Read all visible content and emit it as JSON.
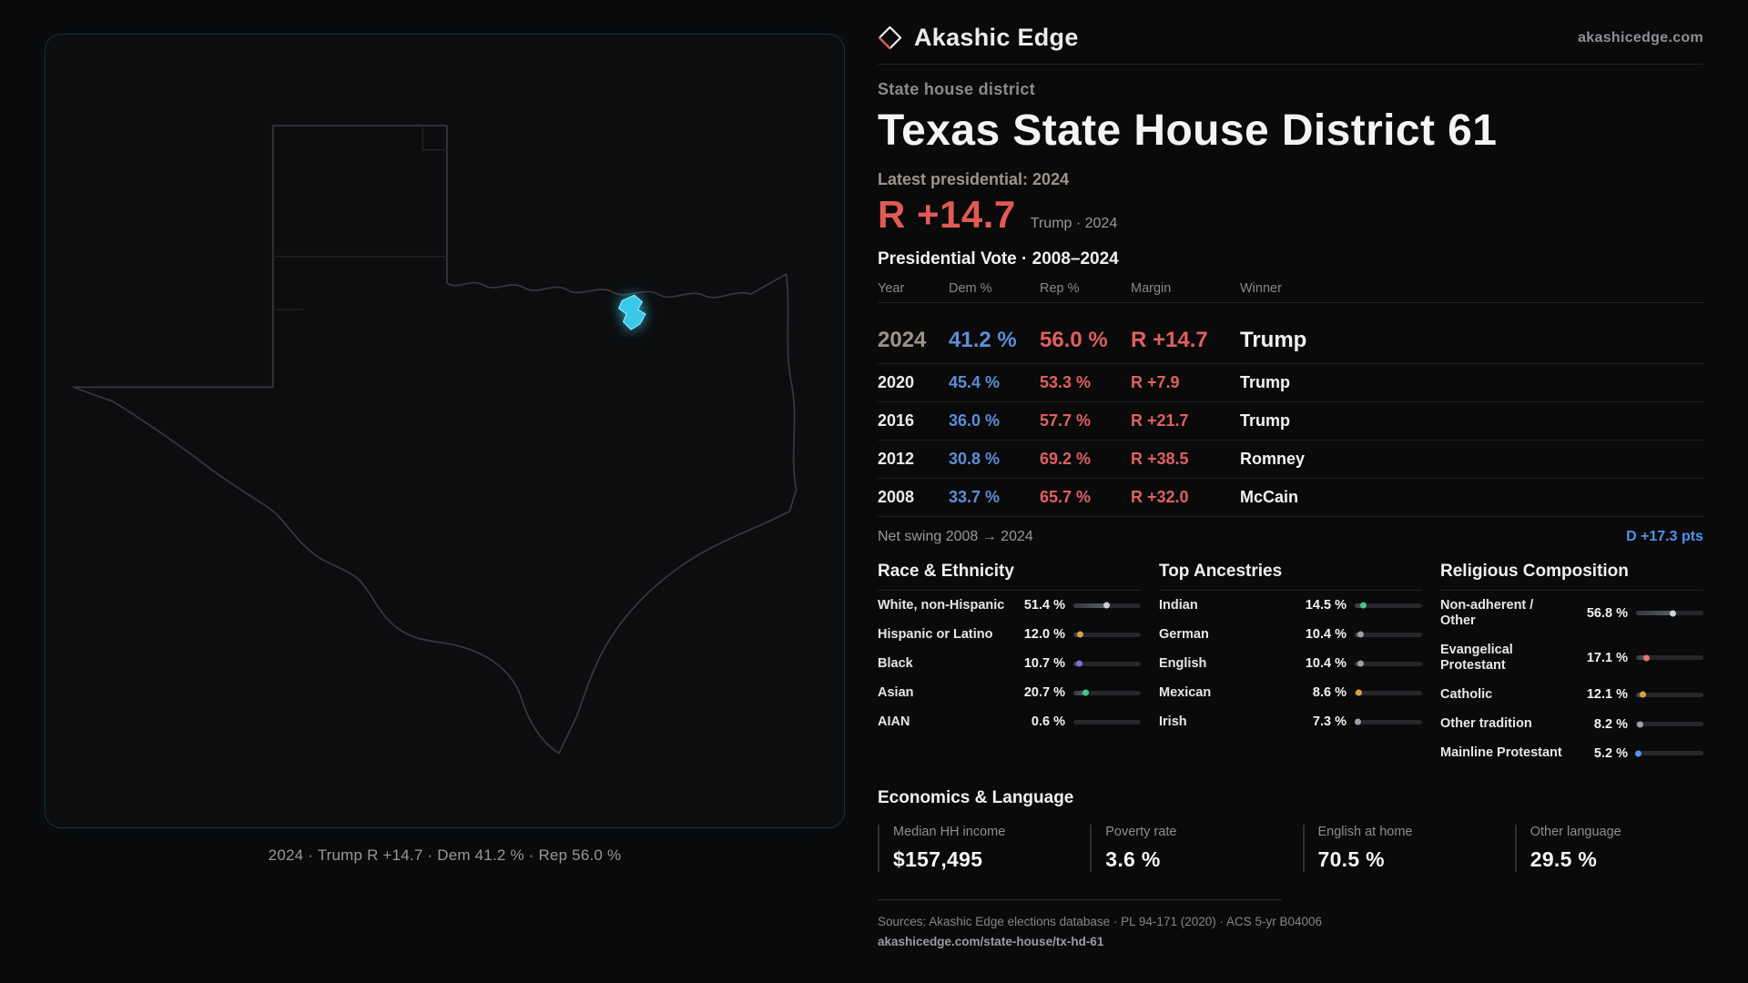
{
  "brand": {
    "name": "Akashic Edge",
    "website": "akashicedge.com"
  },
  "map_panel": {
    "caption": "2024 · Trump R +14.7 · Dem 41.2 % · Rep 56.0 %",
    "highlight_color": "#38c8ea"
  },
  "header": {
    "category": "State house district",
    "title": "Texas State House District 61",
    "latest_label": "Latest presidential: 2024",
    "margin_value": "R +14.7",
    "margin_detail": "Trump · 2024"
  },
  "vote_table": {
    "title": "Presidential Vote · 2008–2024",
    "columns": [
      "Year",
      "Dem %",
      "Rep %",
      "Margin",
      "Winner"
    ],
    "rows": [
      {
        "year": "2024",
        "dem": "41.2 %",
        "rep": "56.0 %",
        "margin": "R +14.7",
        "winner": "Trump"
      },
      {
        "year": "2020",
        "dem": "45.4 %",
        "rep": "53.3 %",
        "margin": "R +7.9",
        "winner": "Trump"
      },
      {
        "year": "2016",
        "dem": "36.0 %",
        "rep": "57.7 %",
        "margin": "R +21.7",
        "winner": "Trump"
      },
      {
        "year": "2012",
        "dem": "30.8 %",
        "rep": "69.2 %",
        "margin": "R +38.5",
        "winner": "Romney"
      },
      {
        "year": "2008",
        "dem": "33.7 %",
        "rep": "65.7 %",
        "margin": "R +32.0",
        "winner": "McCain"
      }
    ],
    "net_swing_label": "Net swing 2008 → 2024",
    "net_swing_value": "D +17.3 pts"
  },
  "race_ethnicity": {
    "title": "Race & Ethnicity",
    "rows": [
      {
        "label": "White, non-Hispanic",
        "value": "51.4 %",
        "pct": 51.4,
        "color": "#cdd1d8"
      },
      {
        "label": "Hispanic or Latino",
        "value": "12.0 %",
        "pct": 12.0,
        "color": "#d9a23e"
      },
      {
        "label": "Black",
        "value": "10.7 %",
        "pct": 10.7,
        "color": "#7e72d8"
      },
      {
        "label": "Asian",
        "value": "20.7 %",
        "pct": 20.7,
        "color": "#43c88f"
      },
      {
        "label": "AIAN",
        "value": "0.6 %",
        "pct": 0.6,
        "color": "#9aa0a8"
      }
    ]
  },
  "ancestries": {
    "title": "Top Ancestries",
    "rows": [
      {
        "label": "Indian",
        "value": "14.5 %",
        "pct": 14.5,
        "color": "#43c88f"
      },
      {
        "label": "German",
        "value": "10.4 %",
        "pct": 10.4,
        "color": "#9aa0a8"
      },
      {
        "label": "English",
        "value": "10.4 %",
        "pct": 10.4,
        "color": "#9aa0a8"
      },
      {
        "label": "Mexican",
        "value": "8.6 %",
        "pct": 8.6,
        "color": "#d9a23e"
      },
      {
        "label": "Irish",
        "value": "7.3 %",
        "pct": 7.3,
        "color": "#9aa0a8"
      }
    ]
  },
  "religion": {
    "title": "Religious Composition",
    "rows": [
      {
        "label": "Non-adherent / Other",
        "value": "56.8 %",
        "pct": 56.8,
        "color": "#cdd1d8"
      },
      {
        "label": "Evangelical Protestant",
        "value": "17.1 %",
        "pct": 17.1,
        "color": "#e07676"
      },
      {
        "label": "Catholic",
        "value": "12.1 %",
        "pct": 12.1,
        "color": "#d9a23e"
      },
      {
        "label": "Other tradition",
        "value": "8.2 %",
        "pct": 8.2,
        "color": "#9aa0a8"
      },
      {
        "label": "Mainline Protestant",
        "value": "5.2 %",
        "pct": 5.2,
        "color": "#4f94e8"
      }
    ]
  },
  "economics": {
    "title": "Economics & Language",
    "stats": [
      {
        "label": "Median HH income",
        "value": "$157,495"
      },
      {
        "label": "Poverty rate",
        "value": "3.6 %"
      },
      {
        "label": "English at home",
        "value": "70.5 %"
      },
      {
        "label": "Other language",
        "value": "29.5 %"
      }
    ]
  },
  "footer": {
    "sources": "Sources: Akashic Edge elections database · PL 94-171 (2020) · ACS 5-yr B04006",
    "permalink": "akashicedge.com/state-house/tx-hd-61"
  },
  "colors": {
    "dem_blue": "#5d8ed6",
    "rep_red": "#e06060",
    "swing_blue": "#4f94e8",
    "headline_red": "#e15a54"
  }
}
